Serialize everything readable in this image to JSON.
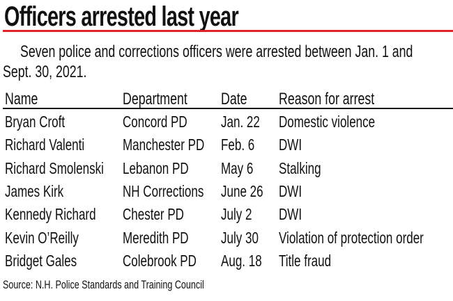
{
  "title": "Officers arrested last year",
  "accent_color": "#e2202a",
  "intro_line1": "Seven police and corrections officers were arrested between Jan. 1 and",
  "intro_line2": "Sept. 30, 2021.",
  "table": {
    "headers": [
      "Name",
      "Department",
      "Date",
      "Reason for arrest"
    ],
    "rows": [
      [
        "Bryan Croft",
        "Concord PD",
        "Jan. 22",
        "Domestic violence"
      ],
      [
        "Richard Valenti",
        "Manchester PD",
        "Feb. 6",
        "DWI"
      ],
      [
        "Richard Smolenski",
        "Lebanon PD",
        "May 6",
        "Stalking"
      ],
      [
        "James Kirk",
        "NH Corrections",
        "June 26",
        "DWI"
      ],
      [
        "Kennedy Richard",
        "Chester PD",
        "July 2",
        "DWI"
      ],
      [
        "Kevin O’Reilly",
        "Meredith PD",
        "July 30",
        "Violation of protection order"
      ],
      [
        "Bridget Gales",
        "Colebrook PD",
        "Aug. 18",
        "Title fraud"
      ]
    ]
  },
  "source": "Source: N.H. Police Standards and Training Council"
}
